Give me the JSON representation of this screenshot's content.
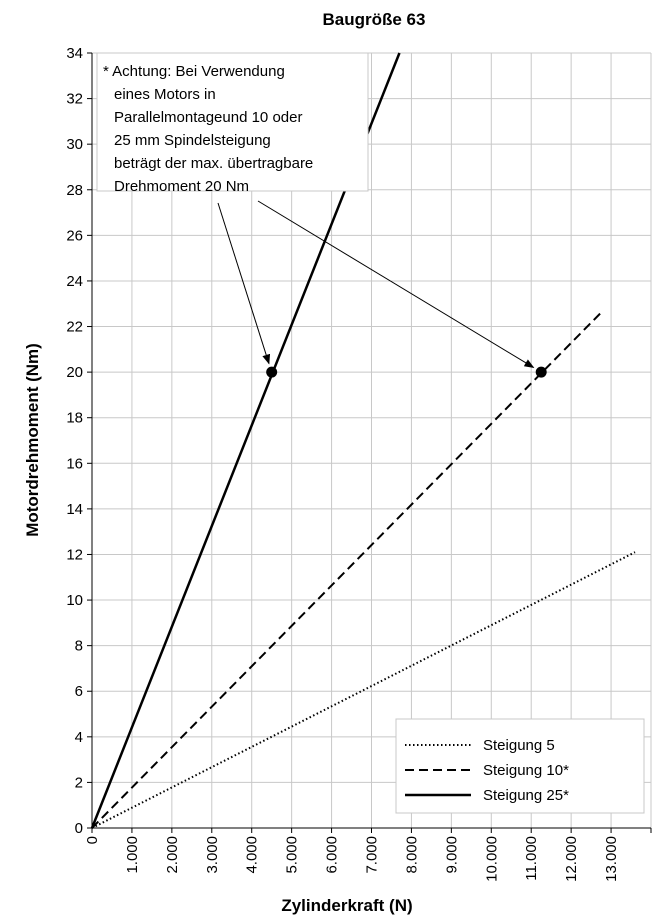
{
  "chart_data": {
    "type": "line",
    "title": "Baugröße 63",
    "xlabel": "Zylinderkraft (N)",
    "ylabel": "Motordrehmoment (Nm)",
    "xlim": [
      0,
      14000
    ],
    "ylim": [
      0,
      34
    ],
    "x_ticks": [
      "0",
      "1.000",
      "2.000",
      "3.000",
      "4.000",
      "5.000",
      "6.000",
      "7.000",
      "8.000",
      "9.000",
      "10.000",
      "11.000",
      "12.000",
      "13.000"
    ],
    "y_ticks": [
      "0",
      "2",
      "4",
      "6",
      "8",
      "10",
      "12",
      "14",
      "16",
      "18",
      "20",
      "22",
      "24",
      "26",
      "28",
      "30",
      "32",
      "34"
    ],
    "grid": true,
    "legend_position": "bottom-right",
    "series": [
      {
        "name": "Steigung 5",
        "style": "dotted",
        "x": [
          0,
          13600
        ],
        "y": [
          0,
          12.1
        ]
      },
      {
        "name": "Steigung 10*",
        "style": "dashed",
        "x": [
          0,
          12800
        ],
        "y": [
          0,
          22.7
        ]
      },
      {
        "name": "Steigung 25*",
        "style": "solid",
        "x": [
          0,
          7700
        ],
        "y": [
          0,
          34
        ]
      }
    ],
    "markers": [
      {
        "x": 4500,
        "y": 20
      },
      {
        "x": 11250,
        "y": 20
      }
    ],
    "annotation": {
      "lines": [
        "* Achtung: Bei Verwendung",
        "eines Motors in",
        "Parallelmontageund 10 oder",
        "25 mm Spindelsteigung",
        "beträgt der max. übertragbare",
        "Drehmoment 20 Nm"
      ]
    }
  }
}
